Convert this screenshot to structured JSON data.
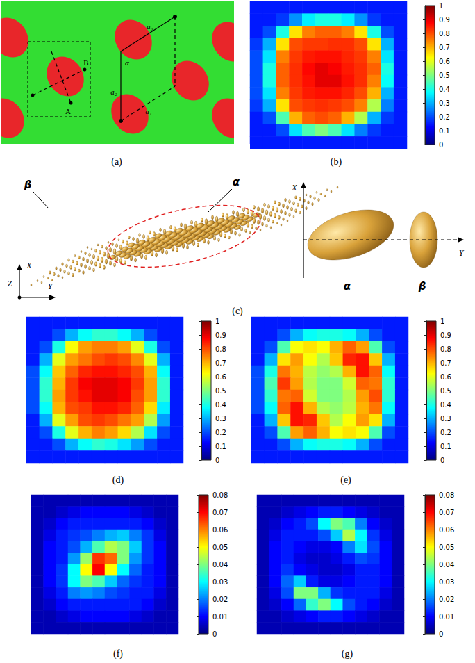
{
  "chart_data": [
    {
      "type": "scatter",
      "caption": "(a)",
      "color": "#e8262a",
      "tick_labels": false,
      "x": [
        12,
        190,
        330,
        92,
        272,
        6,
        185,
        330
      ],
      "y": [
        52,
        55,
        58,
        108,
        114,
        168,
        162,
        168
      ],
      "xlim": [
        0,
        335
      ],
      "ylim": [
        0,
        205
      ],
      "annotations": [
        "A",
        "B",
        "a₃",
        "α",
        "a₂",
        "a₁"
      ]
    },
    {
      "type": "heatmap",
      "caption": "(b)",
      "tick_labels": false,
      "colorbar_range": [
        0,
        1
      ],
      "colorbar_ticks": [
        0,
        0.1,
        0.2,
        0.3,
        0.4,
        0.5,
        0.6,
        0.7,
        0.8,
        0.9,
        1
      ],
      "cells": [
        [
          0.15,
          0.15,
          0.15,
          0.15,
          0.15,
          0.15,
          0.15,
          0.15,
          0.15,
          0.15,
          0.15,
          0.15
        ],
        [
          0.15,
          0.15,
          0.18,
          0.27,
          0.36,
          0.4,
          0.4,
          0.36,
          0.27,
          0.18,
          0.15,
          0.15
        ],
        [
          0.15,
          0.2,
          0.4,
          0.65,
          0.75,
          0.78,
          0.78,
          0.75,
          0.65,
          0.4,
          0.2,
          0.15
        ],
        [
          0.18,
          0.3,
          0.65,
          0.8,
          0.82,
          0.82,
          0.83,
          0.83,
          0.8,
          0.65,
          0.3,
          0.15
        ],
        [
          0.2,
          0.35,
          0.75,
          0.82,
          0.85,
          0.86,
          0.86,
          0.84,
          0.82,
          0.75,
          0.35,
          0.15
        ],
        [
          0.2,
          0.4,
          0.78,
          0.83,
          0.87,
          0.9,
          0.88,
          0.85,
          0.83,
          0.78,
          0.4,
          0.15
        ],
        [
          0.2,
          0.4,
          0.78,
          0.83,
          0.86,
          0.9,
          0.9,
          0.86,
          0.83,
          0.75,
          0.38,
          0.15
        ],
        [
          0.2,
          0.35,
          0.75,
          0.82,
          0.85,
          0.86,
          0.86,
          0.84,
          0.8,
          0.7,
          0.3,
          0.15
        ],
        [
          0.18,
          0.3,
          0.65,
          0.8,
          0.82,
          0.83,
          0.82,
          0.8,
          0.75,
          0.55,
          0.25,
          0.15
        ],
        [
          0.15,
          0.2,
          0.45,
          0.7,
          0.78,
          0.8,
          0.78,
          0.7,
          0.55,
          0.3,
          0.18,
          0.15
        ],
        [
          0.15,
          0.15,
          0.2,
          0.35,
          0.45,
          0.5,
          0.45,
          0.35,
          0.25,
          0.18,
          0.15,
          0.15
        ],
        [
          0.15,
          0.15,
          0.15,
          0.15,
          0.15,
          0.15,
          0.15,
          0.15,
          0.15,
          0.15,
          0.15,
          0.15
        ]
      ]
    },
    {
      "type": "diagram",
      "caption": "(c)",
      "annotations": [
        "β",
        "α",
        "Z",
        "X",
        "Y",
        "X",
        "Y",
        "α",
        "β"
      ]
    },
    {
      "type": "heatmap",
      "caption": "(d)",
      "tick_labels": false,
      "colorbar_range": [
        0,
        1
      ],
      "colorbar_ticks": [
        0,
        0.1,
        0.2,
        0.3,
        0.4,
        0.5,
        0.6,
        0.7,
        0.8,
        0.9,
        1
      ],
      "cells": [
        [
          0.15,
          0.15,
          0.15,
          0.15,
          0.15,
          0.15,
          0.15,
          0.15,
          0.15,
          0.15,
          0.15,
          0.15
        ],
        [
          0.15,
          0.15,
          0.2,
          0.3,
          0.38,
          0.42,
          0.42,
          0.38,
          0.3,
          0.2,
          0.15,
          0.15
        ],
        [
          0.15,
          0.2,
          0.4,
          0.62,
          0.72,
          0.75,
          0.75,
          0.72,
          0.6,
          0.4,
          0.2,
          0.15
        ],
        [
          0.15,
          0.3,
          0.6,
          0.72,
          0.76,
          0.8,
          0.82,
          0.8,
          0.74,
          0.6,
          0.3,
          0.15
        ],
        [
          0.2,
          0.38,
          0.68,
          0.78,
          0.84,
          0.86,
          0.86,
          0.84,
          0.8,
          0.7,
          0.38,
          0.15
        ],
        [
          0.2,
          0.42,
          0.7,
          0.82,
          0.88,
          0.9,
          0.9,
          0.88,
          0.82,
          0.72,
          0.42,
          0.15
        ],
        [
          0.2,
          0.42,
          0.72,
          0.82,
          0.86,
          0.9,
          0.9,
          0.88,
          0.8,
          0.72,
          0.42,
          0.15
        ],
        [
          0.2,
          0.38,
          0.7,
          0.8,
          0.82,
          0.86,
          0.86,
          0.84,
          0.78,
          0.66,
          0.36,
          0.15
        ],
        [
          0.15,
          0.3,
          0.6,
          0.72,
          0.8,
          0.82,
          0.8,
          0.76,
          0.72,
          0.55,
          0.28,
          0.15
        ],
        [
          0.15,
          0.2,
          0.4,
          0.6,
          0.7,
          0.75,
          0.72,
          0.66,
          0.55,
          0.35,
          0.2,
          0.15
        ],
        [
          0.15,
          0.15,
          0.2,
          0.3,
          0.38,
          0.42,
          0.4,
          0.35,
          0.28,
          0.2,
          0.15,
          0.15
        ],
        [
          0.15,
          0.15,
          0.15,
          0.15,
          0.15,
          0.15,
          0.15,
          0.15,
          0.15,
          0.15,
          0.15,
          0.15
        ]
      ]
    },
    {
      "type": "heatmap",
      "caption": "(e)",
      "tick_labels": false,
      "colorbar_range": [
        0,
        1
      ],
      "colorbar_ticks": [
        0,
        0.1,
        0.2,
        0.3,
        0.4,
        0.5,
        0.6,
        0.7,
        0.8,
        0.9,
        1
      ],
      "cells": [
        [
          0.15,
          0.15,
          0.15,
          0.15,
          0.15,
          0.15,
          0.15,
          0.15,
          0.15,
          0.15,
          0.15,
          0.15
        ],
        [
          0.15,
          0.15,
          0.2,
          0.3,
          0.38,
          0.4,
          0.4,
          0.38,
          0.3,
          0.2,
          0.15,
          0.15
        ],
        [
          0.15,
          0.2,
          0.45,
          0.62,
          0.65,
          0.62,
          0.7,
          0.78,
          0.72,
          0.45,
          0.2,
          0.15
        ],
        [
          0.15,
          0.3,
          0.65,
          0.72,
          0.62,
          0.55,
          0.68,
          0.84,
          0.86,
          0.68,
          0.3,
          0.15
        ],
        [
          0.2,
          0.4,
          0.76,
          0.7,
          0.56,
          0.52,
          0.55,
          0.7,
          0.86,
          0.78,
          0.38,
          0.15
        ],
        [
          0.2,
          0.45,
          0.82,
          0.72,
          0.55,
          0.5,
          0.5,
          0.58,
          0.78,
          0.76,
          0.42,
          0.15
        ],
        [
          0.2,
          0.42,
          0.76,
          0.78,
          0.58,
          0.5,
          0.5,
          0.55,
          0.72,
          0.8,
          0.42,
          0.15
        ],
        [
          0.2,
          0.38,
          0.78,
          0.86,
          0.7,
          0.55,
          0.52,
          0.56,
          0.7,
          0.76,
          0.38,
          0.15
        ],
        [
          0.15,
          0.3,
          0.68,
          0.86,
          0.84,
          0.68,
          0.55,
          0.62,
          0.72,
          0.65,
          0.3,
          0.15
        ],
        [
          0.15,
          0.2,
          0.45,
          0.72,
          0.78,
          0.7,
          0.62,
          0.65,
          0.62,
          0.45,
          0.2,
          0.15
        ],
        [
          0.15,
          0.15,
          0.2,
          0.3,
          0.38,
          0.4,
          0.4,
          0.38,
          0.3,
          0.2,
          0.15,
          0.15
        ],
        [
          0.15,
          0.15,
          0.15,
          0.15,
          0.15,
          0.15,
          0.15,
          0.15,
          0.15,
          0.15,
          0.15,
          0.15
        ]
      ]
    },
    {
      "type": "heatmap",
      "caption": "(f)",
      "tick_labels": false,
      "colorbar_range": [
        0,
        0.08
      ],
      "colorbar_ticks": [
        0,
        0.01,
        0.02,
        0.03,
        0.04,
        0.05,
        0.06,
        0.07,
        0.08
      ],
      "cells": [
        [
          0.004,
          0.004,
          0.004,
          0.004,
          0.004,
          0.004,
          0.004,
          0.004,
          0.004,
          0.004,
          0.004,
          0.004
        ],
        [
          0.004,
          0.004,
          0.006,
          0.008,
          0.01,
          0.01,
          0.01,
          0.01,
          0.008,
          0.006,
          0.004,
          0.004
        ],
        [
          0.004,
          0.006,
          0.01,
          0.012,
          0.012,
          0.012,
          0.012,
          0.012,
          0.012,
          0.01,
          0.006,
          0.004
        ],
        [
          0.004,
          0.008,
          0.012,
          0.014,
          0.016,
          0.02,
          0.024,
          0.026,
          0.02,
          0.014,
          0.008,
          0.004
        ],
        [
          0.004,
          0.01,
          0.012,
          0.016,
          0.024,
          0.036,
          0.044,
          0.04,
          0.026,
          0.014,
          0.01,
          0.004
        ],
        [
          0.004,
          0.01,
          0.012,
          0.022,
          0.042,
          0.066,
          0.062,
          0.04,
          0.022,
          0.014,
          0.01,
          0.004
        ],
        [
          0.004,
          0.01,
          0.014,
          0.03,
          0.05,
          0.07,
          0.05,
          0.03,
          0.018,
          0.012,
          0.01,
          0.004
        ],
        [
          0.004,
          0.01,
          0.014,
          0.03,
          0.04,
          0.036,
          0.026,
          0.018,
          0.014,
          0.012,
          0.01,
          0.004
        ],
        [
          0.004,
          0.008,
          0.012,
          0.02,
          0.022,
          0.02,
          0.016,
          0.014,
          0.012,
          0.012,
          0.008,
          0.004
        ],
        [
          0.004,
          0.006,
          0.01,
          0.012,
          0.012,
          0.012,
          0.012,
          0.012,
          0.012,
          0.01,
          0.006,
          0.004
        ],
        [
          0.004,
          0.004,
          0.006,
          0.008,
          0.01,
          0.01,
          0.01,
          0.01,
          0.008,
          0.006,
          0.004,
          0.004
        ],
        [
          0.004,
          0.004,
          0.004,
          0.004,
          0.004,
          0.004,
          0.004,
          0.004,
          0.004,
          0.004,
          0.004,
          0.004
        ]
      ]
    },
    {
      "type": "heatmap",
      "caption": "(g)",
      "tick_labels": false,
      "colorbar_range": [
        0,
        0.08
      ],
      "colorbar_ticks": [
        0,
        0.01,
        0.02,
        0.03,
        0.04,
        0.05,
        0.06,
        0.07,
        0.08
      ],
      "cells": [
        [
          0.004,
          0.004,
          0.004,
          0.004,
          0.004,
          0.004,
          0.004,
          0.004,
          0.004,
          0.004,
          0.004,
          0.004
        ],
        [
          0.004,
          0.004,
          0.006,
          0.008,
          0.01,
          0.012,
          0.012,
          0.01,
          0.008,
          0.006,
          0.004,
          0.004
        ],
        [
          0.004,
          0.006,
          0.01,
          0.012,
          0.016,
          0.03,
          0.04,
          0.036,
          0.02,
          0.01,
          0.006,
          0.004
        ],
        [
          0.004,
          0.008,
          0.012,
          0.012,
          0.012,
          0.016,
          0.026,
          0.044,
          0.03,
          0.014,
          0.008,
          0.004
        ],
        [
          0.004,
          0.01,
          0.012,
          0.01,
          0.008,
          0.008,
          0.01,
          0.02,
          0.028,
          0.016,
          0.01,
          0.004
        ],
        [
          0.004,
          0.01,
          0.012,
          0.008,
          0.006,
          0.006,
          0.008,
          0.012,
          0.016,
          0.014,
          0.01,
          0.004
        ],
        [
          0.004,
          0.01,
          0.014,
          0.01,
          0.008,
          0.006,
          0.006,
          0.008,
          0.012,
          0.012,
          0.01,
          0.004
        ],
        [
          0.004,
          0.01,
          0.018,
          0.026,
          0.012,
          0.008,
          0.008,
          0.01,
          0.012,
          0.012,
          0.01,
          0.004
        ],
        [
          0.004,
          0.008,
          0.016,
          0.04,
          0.04,
          0.024,
          0.014,
          0.012,
          0.012,
          0.012,
          0.008,
          0.004
        ],
        [
          0.004,
          0.006,
          0.01,
          0.018,
          0.034,
          0.04,
          0.03,
          0.016,
          0.012,
          0.01,
          0.006,
          0.004
        ],
        [
          0.004,
          0.004,
          0.006,
          0.008,
          0.01,
          0.012,
          0.012,
          0.01,
          0.008,
          0.006,
          0.004,
          0.004
        ],
        [
          0.004,
          0.004,
          0.004,
          0.004,
          0.004,
          0.004,
          0.004,
          0.004,
          0.004,
          0.004,
          0.004,
          0.004
        ]
      ]
    }
  ]
}
